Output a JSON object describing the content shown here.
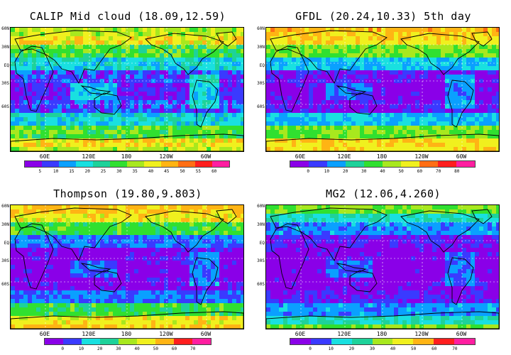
{
  "panels": [
    {
      "title": "CALIP Mid cloud (18.09,12.59)",
      "ticks": [
        "5",
        "10",
        "15",
        "20",
        "25",
        "30",
        "35",
        "40",
        "45",
        "50",
        "55",
        "60"
      ]
    },
    {
      "title": "GFDL (20.24,10.33) 5th day",
      "ticks": [
        "0",
        "10",
        "20",
        "30",
        "40",
        "50",
        "60",
        "70",
        "80"
      ]
    },
    {
      "title": "Thompson (19.80,9.803)",
      "ticks": [
        "0",
        "10",
        "20",
        "30",
        "40",
        "50",
        "60",
        "70"
      ]
    },
    {
      "title": "MG2 (12.06,4.260)",
      "ticks": [
        "0",
        "10",
        "20",
        "30",
        "40",
        "50",
        "60",
        "70"
      ]
    }
  ],
  "lat_labels": [
    "60N",
    "30N",
    "EQ",
    "30S",
    "60S"
  ],
  "lon_labels": [
    "60E",
    "120E",
    "180",
    "120W",
    "60W"
  ],
  "palette": [
    "#8a00e8",
    "#3a3aff",
    "#0aa0ff",
    "#19e0e0",
    "#1ed29a",
    "#30e030",
    "#a8e81e",
    "#f0f01e",
    "#ffb414",
    "#ff6e14",
    "#ff1e1e",
    "#ff1ea0"
  ]
}
